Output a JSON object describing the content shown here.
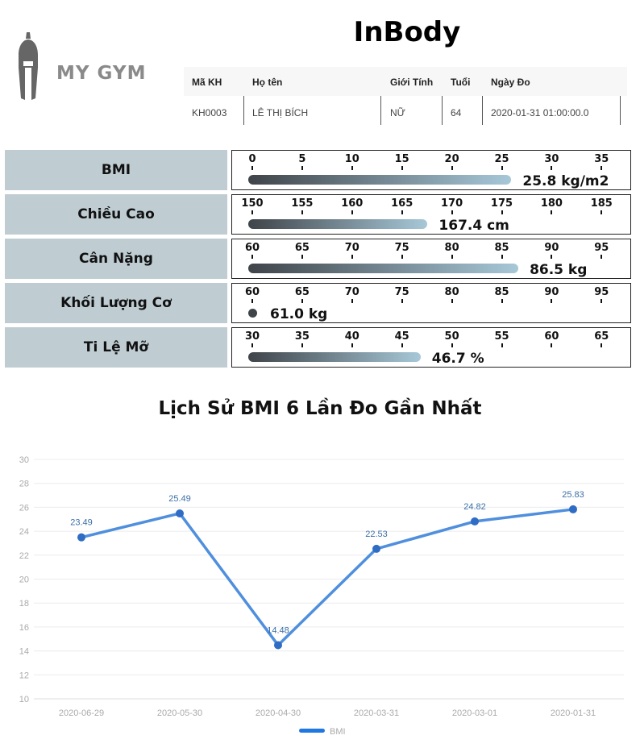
{
  "brand": {
    "logo_text": "MY GYM"
  },
  "page_title": "InBody",
  "customer_table": {
    "headers": [
      "Mã KH",
      "Họ tên",
      "Giới Tính",
      "Tuổi",
      "Ngày Đo"
    ],
    "row": [
      "KH0003",
      "LÊ THỊ BÍCH",
      "NỮ",
      "64",
      "2020-01-31 01:00:00.0"
    ]
  },
  "metrics": [
    {
      "label": "BMI",
      "ticks": [
        "0",
        "5",
        "10",
        "15",
        "20",
        "25",
        "30",
        "35"
      ],
      "min": 0,
      "max": 35,
      "value": 25.8,
      "value_text": "25.8 kg/m2"
    },
    {
      "label": "Chiều Cao",
      "ticks": [
        "150",
        "155",
        "160",
        "165",
        "170",
        "175",
        "180",
        "185"
      ],
      "min": 150,
      "max": 185,
      "value": 167.4,
      "value_text": "167.4 cm"
    },
    {
      "label": "Cân Nặng",
      "ticks": [
        "60",
        "65",
        "70",
        "75",
        "80",
        "85",
        "90",
        "95"
      ],
      "min": 60,
      "max": 95,
      "value": 86.5,
      "value_text": "86.5 kg"
    },
    {
      "label": "Khối Lượng Cơ",
      "ticks": [
        "60",
        "65",
        "70",
        "75",
        "80",
        "85",
        "90",
        "95"
      ],
      "min": 60,
      "max": 95,
      "value": 61.0,
      "value_text": "61.0 kg"
    },
    {
      "label": "Ti Lệ Mỡ",
      "ticks": [
        "30",
        "35",
        "40",
        "45",
        "50",
        "55",
        "60",
        "65"
      ],
      "min": 30,
      "max": 65,
      "value": 46.7,
      "value_text": "46.7 %"
    }
  ],
  "chart_title": "Lịch Sử BMI 6 Lần Đo Gần Nhất",
  "chart_data": {
    "type": "line",
    "x": [
      "2020-06-29",
      "2020-05-30",
      "2020-04-30",
      "2020-03-31",
      "2020-03-01",
      "2020-01-31"
    ],
    "series": [
      {
        "name": "BMI",
        "values": [
          23.49,
          25.49,
          14.48,
          22.53,
          24.82,
          25.83
        ]
      }
    ],
    "ylim": [
      10,
      30
    ],
    "yticks": [
      10,
      12,
      14,
      16,
      18,
      20,
      22,
      24,
      26,
      28,
      30
    ],
    "grid": true,
    "legend": "bottom",
    "color": "#4f8fdd"
  }
}
